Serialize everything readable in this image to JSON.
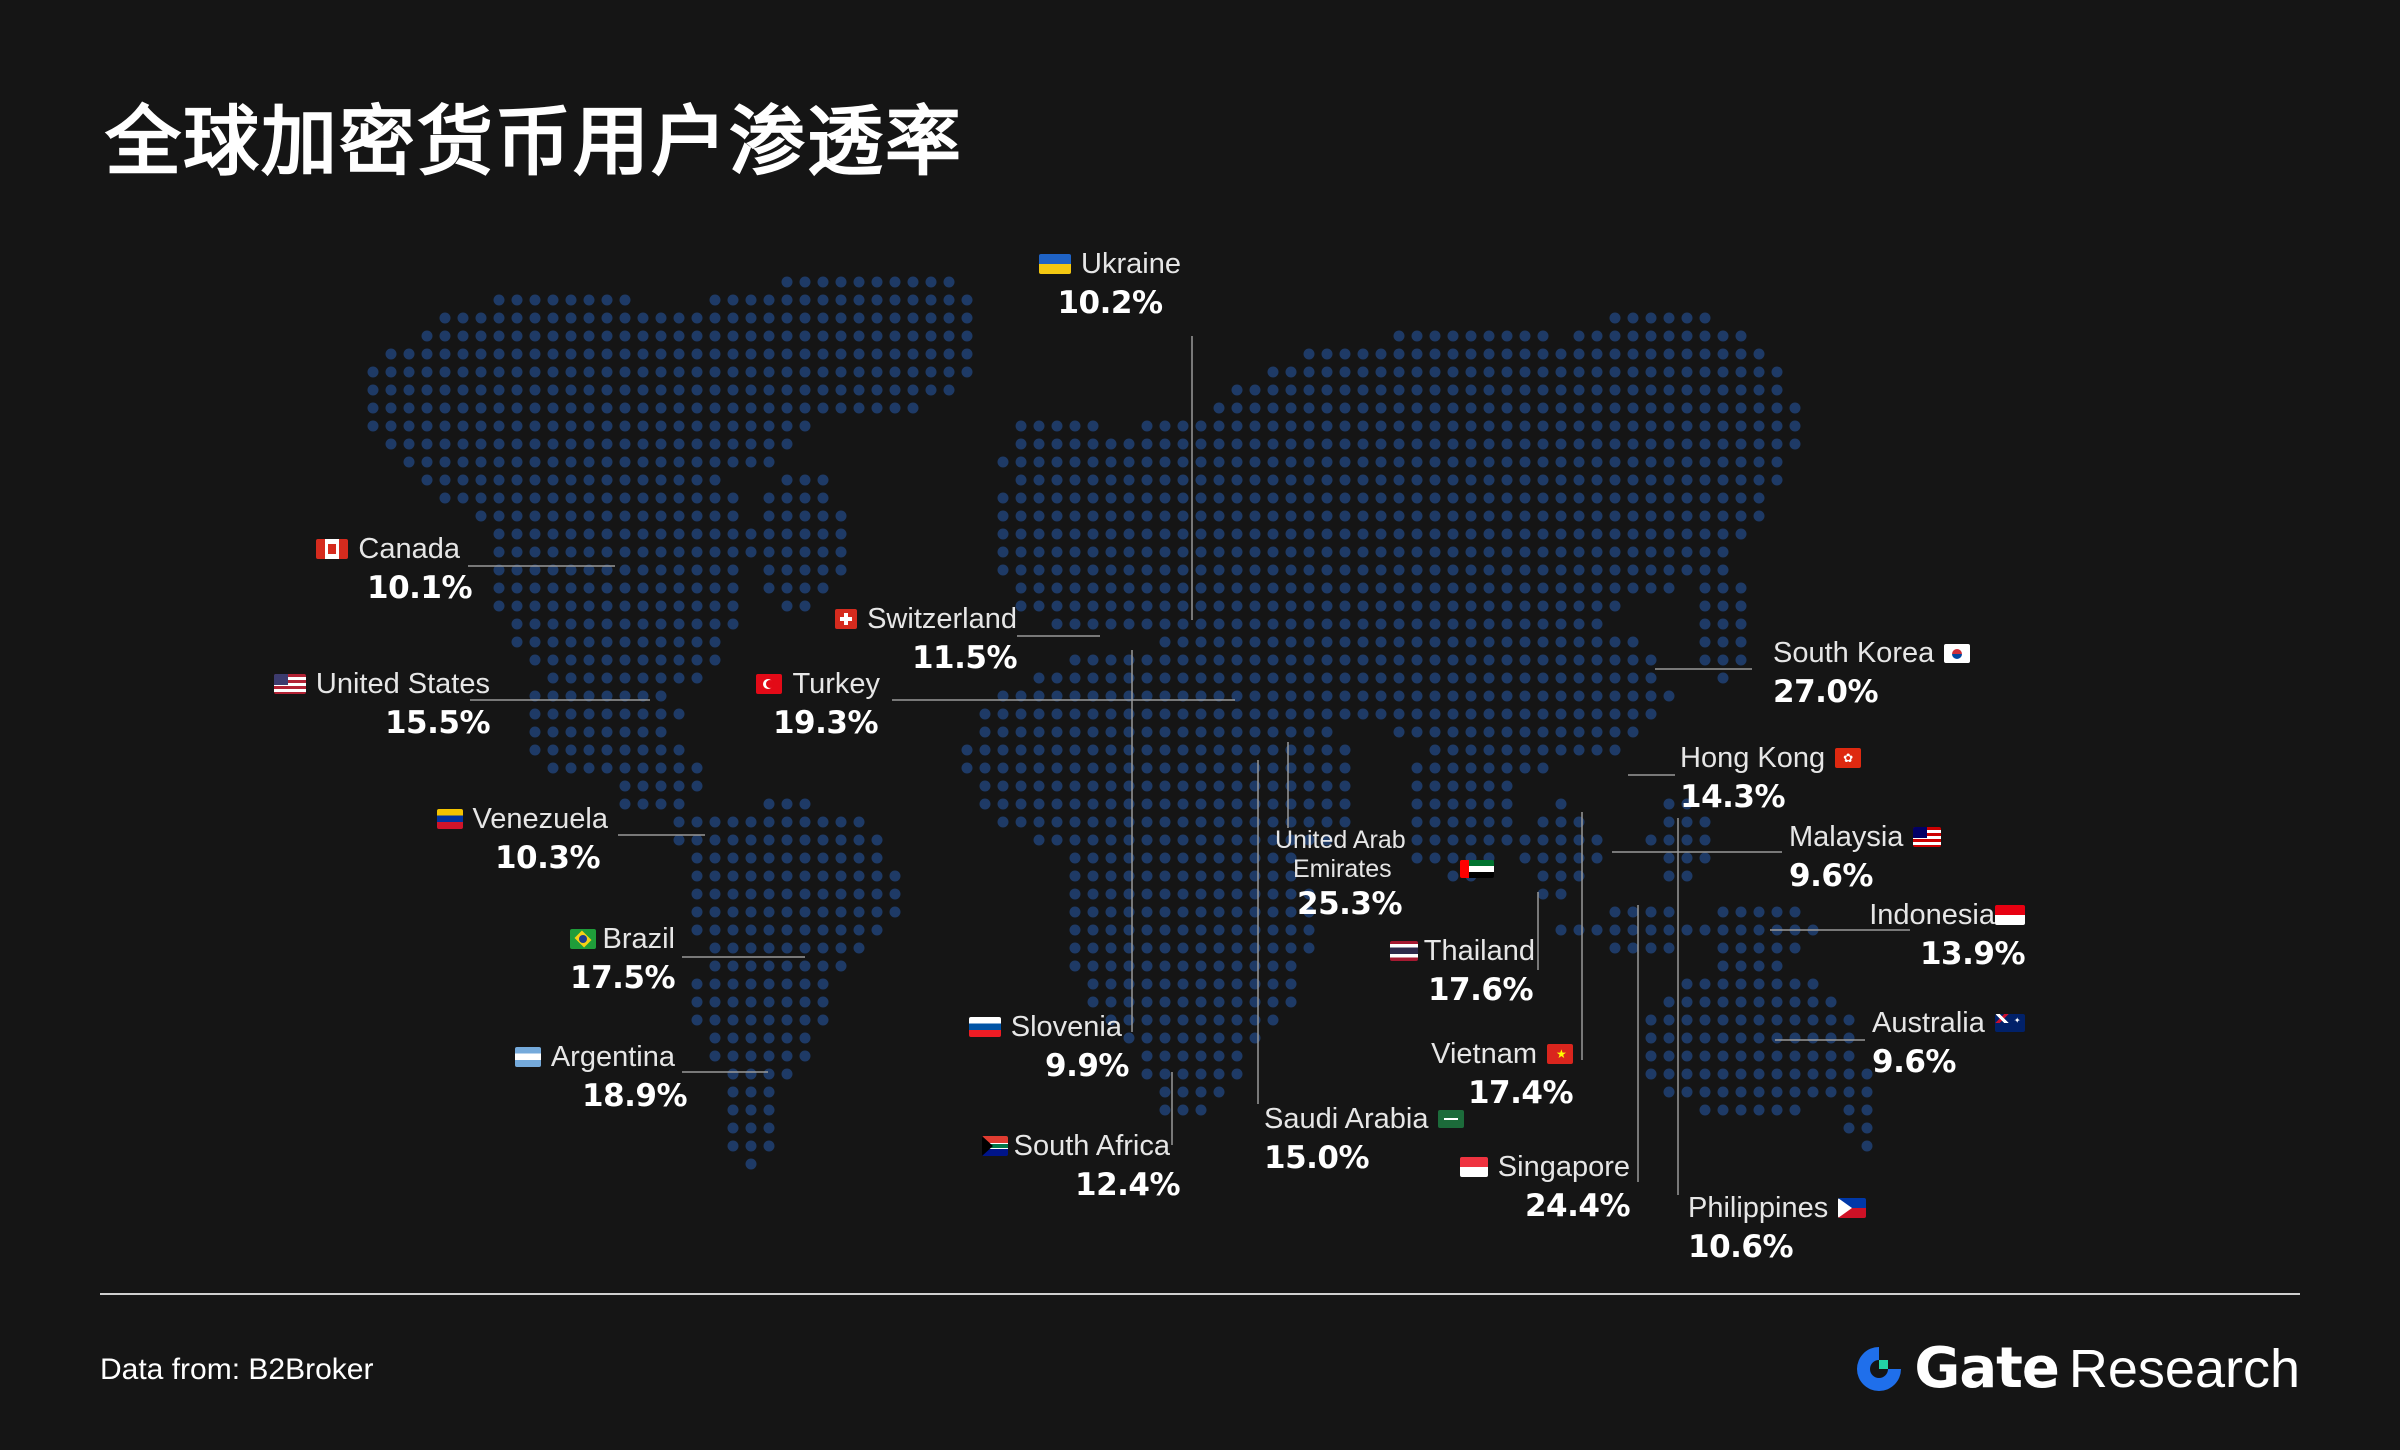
{
  "title": "全球加密货币用户渗透率",
  "source": "Data from:  B2Broker",
  "brand": {
    "name": "Gate",
    "suffix": "Research"
  },
  "colors": {
    "background": "#151515",
    "dot": "#1e3a66",
    "line": "#9a9a9a",
    "accent": "#1f6feb"
  },
  "countries": {
    "ukraine": {
      "name": "Ukraine",
      "value": "10.2%",
      "flag": "ukraine-flag"
    },
    "canada": {
      "name": "Canada",
      "value": "10.1%",
      "flag": "canada-flag"
    },
    "switzerland": {
      "name": "Switzerland",
      "value": "11.5%",
      "flag": "switzerland-flag"
    },
    "united_states": {
      "name": "United States",
      "value": "15.5%",
      "flag": "united-states-flag"
    },
    "turkey": {
      "name": "Turkey",
      "value": "19.3%",
      "flag": "turkey-flag"
    },
    "venezuela": {
      "name": "Venezuela",
      "value": "10.3%",
      "flag": "venezuela-flag"
    },
    "brazil": {
      "name": "Brazil",
      "value": "17.5%",
      "flag": "brazil-flag"
    },
    "argentina": {
      "name": "Argentina",
      "value": "18.9%",
      "flag": "argentina-flag"
    },
    "slovenia": {
      "name": "Slovenia",
      "value": "9.9%",
      "flag": "slovenia-flag"
    },
    "south_africa": {
      "name": "South Africa",
      "value": "12.4%",
      "flag": "south-africa-flag"
    },
    "uae": {
      "name_line1": "United Arab",
      "name_line2": "Emirates",
      "value": "25.3%",
      "flag": "uae-flag"
    },
    "saudi_arabia": {
      "name": "Saudi Arabia",
      "value": "15.0%",
      "flag": "saudi-arabia-flag"
    },
    "thailand": {
      "name": "Thailand",
      "value": "17.6%",
      "flag": "thailand-flag"
    },
    "vietnam": {
      "name": "Vietnam",
      "value": "17.4%",
      "flag": "vietnam-flag"
    },
    "singapore": {
      "name": "Singapore",
      "value": "24.4%",
      "flag": "singapore-flag"
    },
    "philippines": {
      "name": "Philippines",
      "value": "10.6%",
      "flag": "philippines-flag"
    },
    "south_korea": {
      "name": "South Korea",
      "value": "27.0%",
      "flag": "south-korea-flag"
    },
    "hong_kong": {
      "name": "Hong Kong",
      "value": "14.3%",
      "flag": "hong-kong-flag"
    },
    "malaysia": {
      "name": "Malaysia",
      "value": "9.6%",
      "flag": "malaysia-flag"
    },
    "indonesia": {
      "name": "Indonesia",
      "value": "13.9%",
      "flag": "indonesia-flag"
    },
    "australia": {
      "name": "Australia",
      "value": "9.6%",
      "flag": "australia-flag"
    }
  }
}
